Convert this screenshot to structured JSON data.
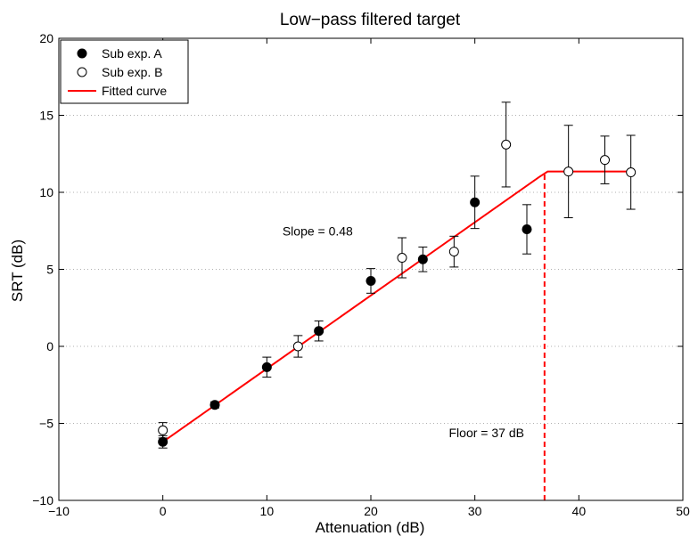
{
  "chart_data": {
    "type": "scatter",
    "title": "Low−pass filtered target",
    "xlabel": "Attenuation (dB)",
    "ylabel": "SRT (dB)",
    "xlim": [
      -10,
      50
    ],
    "ylim": [
      -10,
      20
    ],
    "x_ticks": [
      -10,
      0,
      10,
      20,
      30,
      40,
      50
    ],
    "y_ticks": [
      -10,
      -5,
      0,
      5,
      10,
      15,
      20
    ],
    "x_tick_labels": [
      "−10",
      "0",
      "10",
      "20",
      "30",
      "40",
      "50"
    ],
    "y_tick_labels": [
      "−10",
      "−5",
      "0",
      "5",
      "10",
      "15",
      "20"
    ],
    "grid": "horizontal dotted",
    "legend_position": "top-left",
    "series": [
      {
        "name": "Sub exp. A",
        "marker": "filled-circle",
        "color": "#000000",
        "points": [
          {
            "x": 0,
            "y": -6.2,
            "err_low": 0.4,
            "err_high": 0.4
          },
          {
            "x": 5,
            "y": -3.8,
            "err_low": 0.2,
            "err_high": 0.2
          },
          {
            "x": 10,
            "y": -1.35,
            "err_low": 0.65,
            "err_high": 0.65
          },
          {
            "x": 15,
            "y": 1.0,
            "err_low": 0.65,
            "err_high": 0.65
          },
          {
            "x": 20,
            "y": 4.25,
            "err_low": 0.8,
            "err_high": 0.8
          },
          {
            "x": 25,
            "y": 5.65,
            "err_low": 0.8,
            "err_high": 0.8
          },
          {
            "x": 30,
            "y": 9.35,
            "err_low": 1.7,
            "err_high": 1.7
          },
          {
            "x": 35,
            "y": 7.6,
            "err_low": 1.6,
            "err_high": 1.6
          }
        ]
      },
      {
        "name": "Sub exp. B",
        "marker": "open-circle",
        "color": "#000000",
        "points": [
          {
            "x": 0,
            "y": -5.45,
            "err_low": 0.5,
            "err_high": 0.5
          },
          {
            "x": 13,
            "y": 0.0,
            "err_low": 0.7,
            "err_high": 0.7
          },
          {
            "x": 23,
            "y": 5.75,
            "err_low": 1.3,
            "err_high": 1.3
          },
          {
            "x": 28,
            "y": 6.15,
            "err_low": 1.0,
            "err_high": 1.0
          },
          {
            "x": 33,
            "y": 13.1,
            "err_low": 2.75,
            "err_high": 2.75
          },
          {
            "x": 39,
            "y": 11.35,
            "err_low": 3.0,
            "err_high": 3.0
          },
          {
            "x": 42.5,
            "y": 12.1,
            "err_low": 1.55,
            "err_high": 1.55
          },
          {
            "x": 45,
            "y": 11.3,
            "err_low": 2.4,
            "err_high": 2.4
          }
        ]
      }
    ],
    "fitted_curve": {
      "name": "Fitted curve",
      "color": "#ff0000",
      "points": [
        [
          0,
          -6.2
        ],
        [
          36.2,
          11.0
        ],
        [
          37,
          11.35
        ],
        [
          45,
          11.35
        ]
      ]
    },
    "floor_line": {
      "x": 36.7,
      "y_from": -10,
      "y_to": 11.3,
      "color": "#ff0000",
      "style": "dashed"
    },
    "annotations": [
      {
        "text": "Slope = 0.48",
        "x": 11.5,
        "y": 7.2
      },
      {
        "text": "Floor = 37 dB",
        "x": 27.5,
        "y": -5.9
      }
    ]
  }
}
